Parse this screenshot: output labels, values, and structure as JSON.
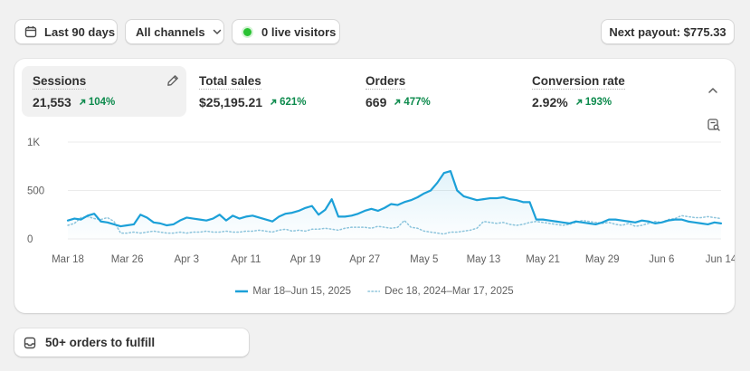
{
  "toolbar": {
    "date_range": "Last 90 days",
    "channels": "All channels",
    "live_visitors": "0 live visitors",
    "payout": "Next payout: $775.33"
  },
  "colors": {
    "current_series": "#1ca0d8",
    "previous_series": "#8fc5dc",
    "positive_change": "#0c8a4c",
    "live_dot": "#29c232"
  },
  "metrics": [
    {
      "title": "Sessions",
      "value": "21,553",
      "change": "104%",
      "active": true
    },
    {
      "title": "Total sales",
      "value": "$25,195.21",
      "change": "621%"
    },
    {
      "title": "Orders",
      "value": "669",
      "change": "477%"
    },
    {
      "title": "Conversion rate",
      "value": "2.92%",
      "change": "193%"
    }
  ],
  "icons": {
    "edit": "pencil-icon",
    "collapse": "chevron-up-icon",
    "report": "report-search-icon",
    "calendar": "calendar-icon",
    "dropdown": "chevron-down-icon",
    "fulfill": "inbox-icon"
  },
  "chart_data": {
    "type": "line",
    "ylim": [
      0,
      1000
    ],
    "y_ticks": [
      {
        "value": 0,
        "label": "0"
      },
      {
        "value": 500,
        "label": "500"
      },
      {
        "value": 1000,
        "label": "1K"
      }
    ],
    "x_labels": [
      "Mar 18",
      "Mar 26",
      "Apr 3",
      "Apr 11",
      "Apr 19",
      "Apr 27",
      "May 5",
      "May 13",
      "May 21",
      "May 29",
      "Jun 6",
      "Jun 14"
    ],
    "legend_position": "bottom",
    "series": [
      {
        "name": "Mar 18–Jun 15, 2025",
        "style": "solid",
        "values": [
          190,
          210,
          200,
          240,
          260,
          180,
          170,
          150,
          130,
          140,
          150,
          250,
          220,
          170,
          160,
          140,
          150,
          190,
          220,
          210,
          200,
          190,
          210,
          250,
          190,
          240,
          210,
          230,
          240,
          220,
          200,
          180,
          230,
          260,
          270,
          290,
          320,
          340,
          250,
          300,
          410,
          230,
          230,
          240,
          260,
          290,
          310,
          290,
          320,
          360,
          350,
          380,
          400,
          430,
          470,
          500,
          580,
          680,
          700,
          500,
          440,
          420,
          400,
          410,
          420,
          420,
          430,
          410,
          400,
          380,
          380,
          200,
          200,
          190,
          180,
          170,
          160,
          180,
          170,
          160,
          150,
          170,
          200,
          200,
          190,
          180,
          170,
          190,
          180,
          160,
          170,
          190,
          200,
          200,
          180,
          170,
          160,
          150,
          170,
          160
        ]
      },
      {
        "name": "Dec 18, 2024–Mar 17, 2025",
        "style": "dotted",
        "values": [
          140,
          160,
          220,
          230,
          210,
          200,
          220,
          180,
          60,
          60,
          70,
          60,
          70,
          80,
          70,
          60,
          60,
          70,
          60,
          70,
          70,
          80,
          70,
          70,
          80,
          70,
          70,
          80,
          80,
          90,
          80,
          70,
          90,
          100,
          80,
          90,
          80,
          100,
          100,
          110,
          100,
          90,
          110,
          120,
          120,
          120,
          110,
          130,
          120,
          110,
          120,
          190,
          120,
          110,
          80,
          70,
          60,
          50,
          70,
          70,
          80,
          90,
          110,
          180,
          170,
          160,
          170,
          150,
          140,
          150,
          170,
          180,
          170,
          160,
          150,
          140,
          150,
          170,
          190,
          180,
          170,
          160,
          170,
          150,
          140,
          160,
          130,
          140,
          160,
          180,
          170,
          200,
          210,
          240,
          230,
          220,
          220,
          230,
          220,
          210
        ]
      }
    ]
  },
  "fulfill": {
    "label": "50+ orders to fulfill"
  }
}
